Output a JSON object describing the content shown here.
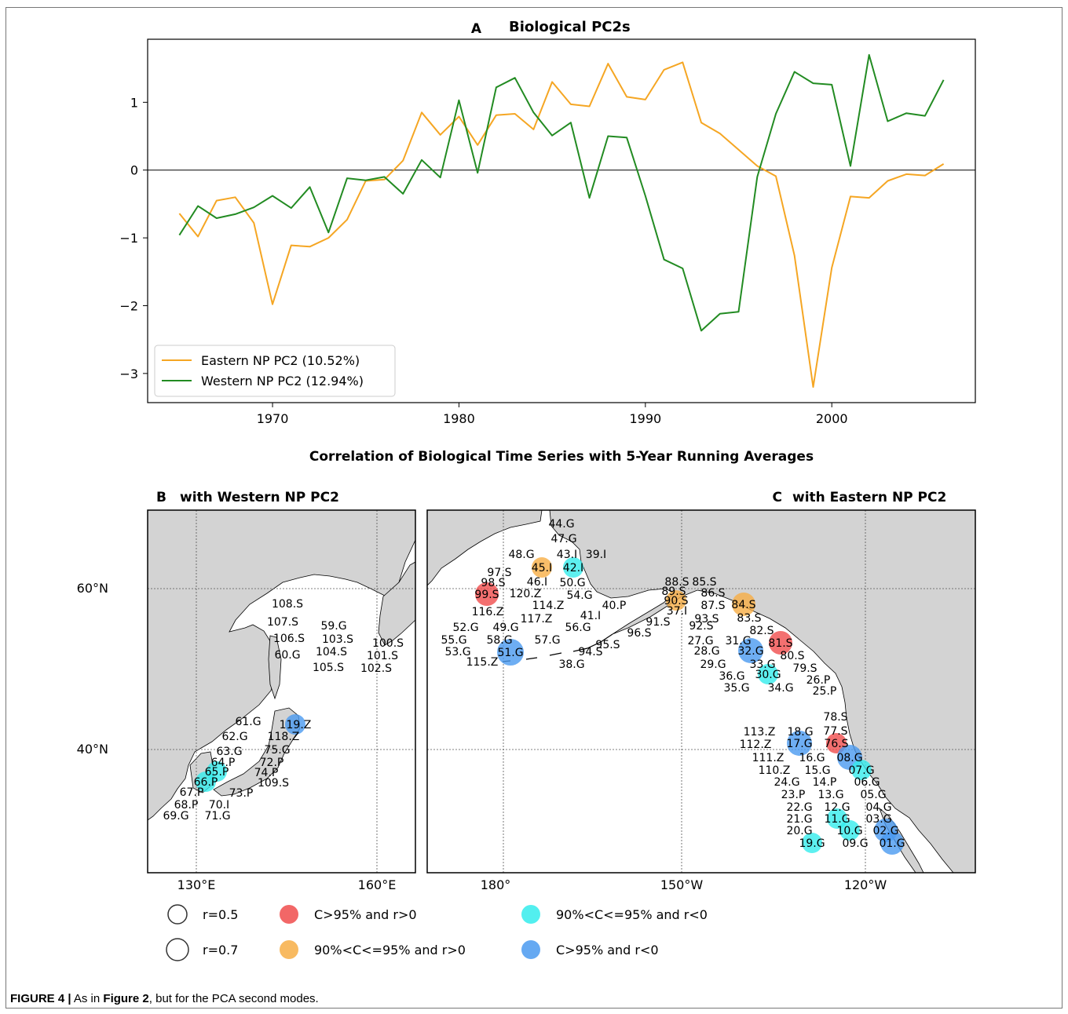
{
  "chart_data": [
    {
      "type": "line",
      "panel": "A",
      "title": "Biological PC2s",
      "x": [
        1965,
        1966,
        1967,
        1968,
        1969,
        1970,
        1971,
        1972,
        1973,
        1974,
        1975,
        1976,
        1977,
        1978,
        1979,
        1980,
        1981,
        1982,
        1983,
        1984,
        1985,
        1986,
        1987,
        1988,
        1989,
        1990,
        1991,
        1992,
        1993,
        1994,
        1995,
        1996,
        1997,
        1998,
        1999,
        2000,
        2001,
        2002,
        2003,
        2004,
        2005,
        2006
      ],
      "xticks": [
        1970,
        1980,
        1990,
        2000
      ],
      "yticks": [
        -3,
        -2,
        -1,
        0,
        1
      ],
      "xlim": [
        1963.3,
        2007.7
      ],
      "ylim": [
        -3.43,
        1.93
      ],
      "series": [
        {
          "name": "Eastern NP PC2 (10.52%)",
          "color": "#f5a623",
          "values": [
            -0.64,
            -0.98,
            -0.45,
            -0.4,
            -0.78,
            -1.98,
            -1.11,
            -1.13,
            -1.0,
            -0.73,
            -0.16,
            -0.14,
            0.14,
            0.85,
            0.52,
            0.79,
            0.37,
            0.81,
            0.83,
            0.6,
            1.3,
            0.97,
            0.94,
            1.57,
            1.08,
            1.04,
            1.48,
            1.59,
            0.7,
            0.54,
            0.3,
            0.06,
            -0.09,
            -1.26,
            -3.2,
            -1.44,
            -0.39,
            -0.41,
            -0.16,
            -0.06,
            -0.08,
            0.09
          ]
        },
        {
          "name": "Western NP PC2 (12.94%)",
          "color": "#228b22",
          "values": [
            -0.96,
            -0.53,
            -0.71,
            -0.65,
            -0.55,
            -0.38,
            -0.56,
            -0.25,
            -0.92,
            -0.12,
            -0.15,
            -0.1,
            -0.35,
            0.15,
            -0.11,
            1.03,
            -0.04,
            1.22,
            1.36,
            0.85,
            0.51,
            0.7,
            -0.41,
            0.5,
            0.48,
            -0.38,
            -1.32,
            -1.45,
            -2.37,
            -2.12,
            -2.09,
            -0.1,
            0.83,
            1.45,
            1.28,
            1.26,
            0.06,
            1.7,
            0.72,
            0.84,
            0.8,
            1.33
          ]
        }
      ]
    },
    {
      "type": "scatter",
      "panel": "B",
      "title": "with Western NP PC2",
      "xticks": [
        "130°E",
        "160°E"
      ],
      "yticks": [
        "60°N",
        "40°N"
      ],
      "stations": [
        "108.S",
        "107.S",
        "106.S",
        "60.G",
        "59.G",
        "103.S",
        "104.S",
        "105.S",
        "100.S",
        "101.S",
        "102.S",
        "61.G",
        "119.Z",
        "62.G",
        "118.Z",
        "75.G",
        "63.G",
        "64.P",
        "72.P",
        "65.P",
        "74.P",
        "66.P",
        "109.S",
        "67.P",
        "73.P",
        "68.P",
        "70.I",
        "69.G",
        "71.G"
      ],
      "highlighted": [
        {
          "label": "119.Z",
          "category": "C>95% and r<0"
        },
        {
          "label": "65.P",
          "category": "90%<C<=95% and r<0"
        },
        {
          "label": "66.P",
          "category": "90%<C<=95% and r<0"
        }
      ]
    },
    {
      "type": "scatter",
      "panel": "C",
      "title": "with Eastern NP PC2",
      "xticks": [
        "180°",
        "150°W",
        "120°W"
      ],
      "yticks": [
        "60°N",
        "40°N"
      ],
      "stations": [
        "44.G",
        "47.G",
        "48.G",
        "43.I",
        "39.I",
        "45.I",
        "42.I",
        "97.S",
        "46.I",
        "50.G",
        "98.S",
        "99.S",
        "120.Z",
        "54.G",
        "114.Z",
        "116.Z",
        "117.Z",
        "40.P",
        "41.I",
        "52.G",
        "49.G",
        "56.G",
        "55.G",
        "58.G",
        "57.G",
        "53.G",
        "51.G",
        "95.S",
        "94.S",
        "115.Z",
        "38.G",
        "96.S",
        "91.S",
        "88.S",
        "85.S",
        "89.S",
        "86.S",
        "90.S",
        "87.S",
        "37.I",
        "84.S",
        "93.S",
        "83.S",
        "92.S",
        "82.S",
        "27.G",
        "31.G",
        "81.S",
        "28.G",
        "32.G",
        "80.S",
        "29.G",
        "33.G",
        "79.S",
        "36.G",
        "30.G",
        "26.P",
        "35.G",
        "34.G",
        "25.P",
        "78.S",
        "113.Z",
        "18.G",
        "77.S",
        "112.Z",
        "17.G",
        "76.S",
        "111.Z",
        "16.G",
        "08.G",
        "110.Z",
        "15.G",
        "07.G",
        "24.G",
        "14.P",
        "06.G",
        "23.P",
        "13.G",
        "05.G",
        "22.G",
        "12.G",
        "04.G",
        "21.G",
        "11.G",
        "03.G",
        "20.G",
        "10.G",
        "02.G",
        "19.G",
        "09.G",
        "01.G"
      ],
      "highlighted": [
        {
          "label": "45.I",
          "category": "90%<C<=95% and r>0"
        },
        {
          "label": "42.I",
          "category": "90%<C<=95% and r<0"
        },
        {
          "label": "99.S",
          "category": "C>95% and r>0"
        },
        {
          "label": "90.S",
          "category": "90%<C<=95% and r>0"
        },
        {
          "label": "84.S",
          "category": "90%<C<=95% and r>0"
        },
        {
          "label": "51.G",
          "category": "C>95% and r<0"
        },
        {
          "label": "81.S",
          "category": "C>95% and r>0"
        },
        {
          "label": "32.G",
          "category": "C>95% and r<0"
        },
        {
          "label": "30.G",
          "category": "90%<C<=95% and r<0"
        },
        {
          "label": "17.G",
          "category": "C>95% and r<0"
        },
        {
          "label": "76.S",
          "category": "C>95% and r>0"
        },
        {
          "label": "08.G",
          "category": "C>95% and r<0"
        },
        {
          "label": "07.G",
          "category": "90%<C<=95% and r<0"
        },
        {
          "label": "11.G",
          "category": "90%<C<=95% and r<0"
        },
        {
          "label": "10.G",
          "category": "90%<C<=95% and r<0"
        },
        {
          "label": "02.G",
          "category": "C>95% and r<0"
        },
        {
          "label": "01.G",
          "category": "C>95% and r<0"
        },
        {
          "label": "19.G",
          "category": "90%<C<=95% and r<0"
        }
      ]
    }
  ],
  "maps_title": "Correlation of Biological Time Series with 5-Year Running Averages",
  "panel_letters": {
    "a": "A",
    "b": "B",
    "c": "C"
  },
  "legend": {
    "sizes": [
      {
        "label": "r=0.5"
      },
      {
        "label": "r=0.7"
      }
    ],
    "categories": [
      {
        "label": "C>95% and r>0",
        "color": "#f04c4c"
      },
      {
        "label": "90%<C<=95% and r>0",
        "color": "#f7ae45"
      },
      {
        "label": "90%<C<=95% and r<0",
        "color": "#34ecec"
      },
      {
        "label": "C>95% and r<0",
        "color": "#4a9af0"
      }
    ]
  },
  "caption": {
    "figure": "FIGURE 4 |",
    "text_a": " As in ",
    "ref": "Figure 2",
    "text_b": ", but for the PCA second modes."
  }
}
